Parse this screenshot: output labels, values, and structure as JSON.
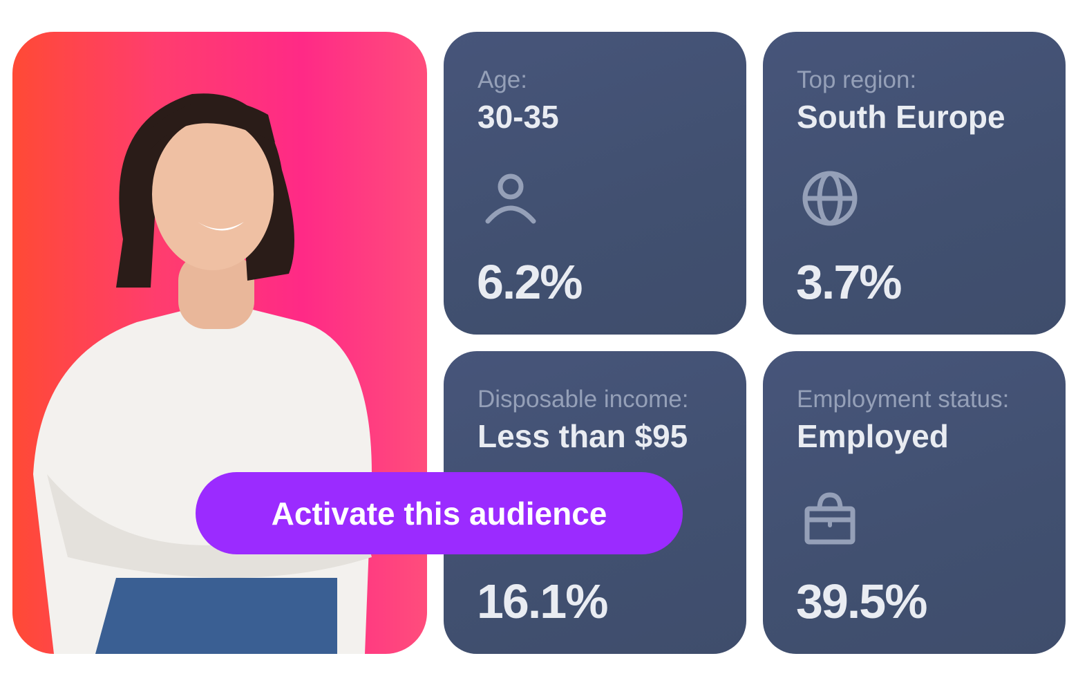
{
  "cards": [
    {
      "label": "Age:",
      "value": "30-35",
      "icon": "user-icon",
      "percent": "6.2%"
    },
    {
      "label": "Top region:",
      "value": "South Europe",
      "icon": "globe-icon",
      "percent": "3.7%"
    },
    {
      "label": "Disposable income:",
      "value": "Less than $95",
      "icon": "wallet-icon",
      "percent": "16.1%"
    },
    {
      "label": "Employment status:",
      "value": "Employed",
      "icon": "briefcase-icon",
      "percent": "39.5%"
    }
  ],
  "cta": {
    "label": "Activate this audience"
  },
  "colors": {
    "card": "#435170",
    "accent": "#9b2bff",
    "label": "#95a0b8",
    "value": "#e9ecf2"
  }
}
